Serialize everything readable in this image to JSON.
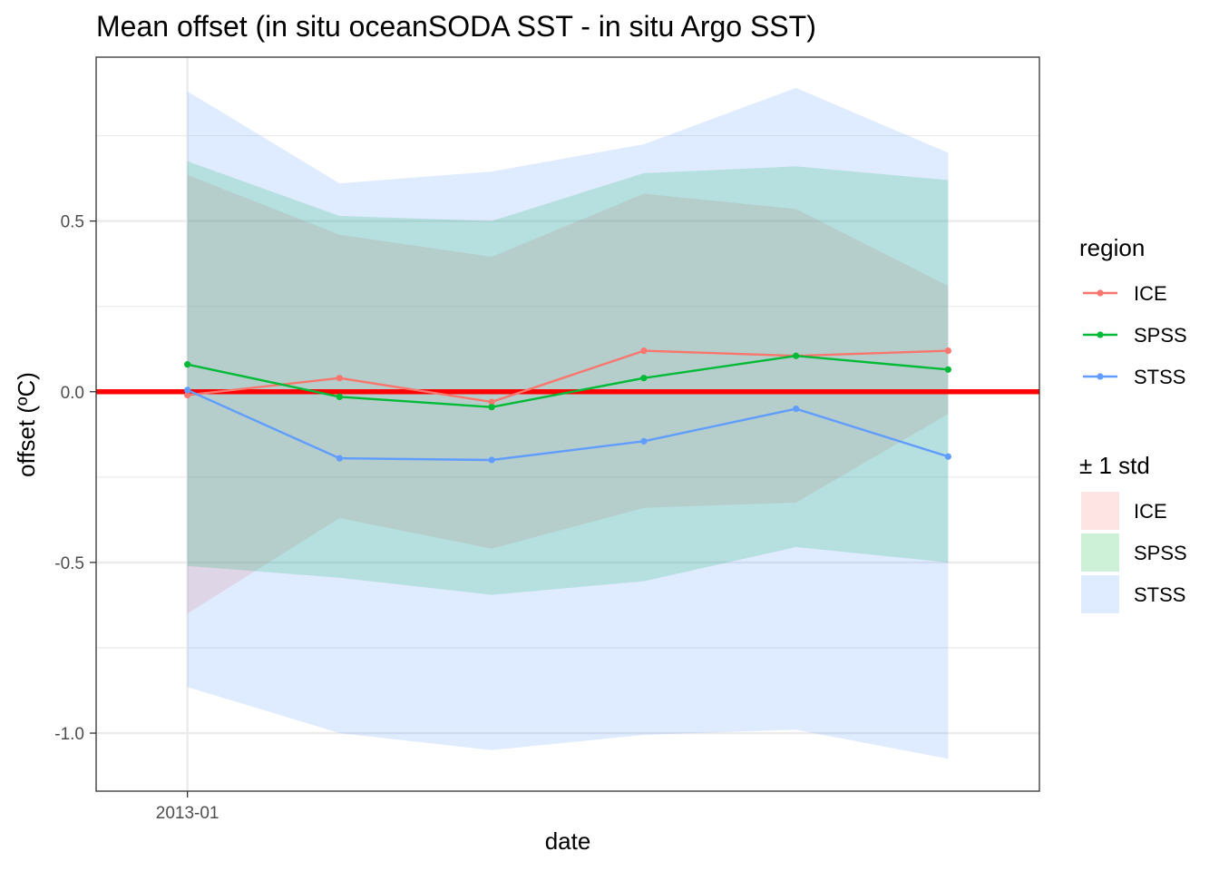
{
  "chart_data": {
    "type": "line",
    "title": "Mean offset (in situ oceanSODA SST - in situ Argo SST)",
    "xlabel": "date",
    "ylabel": "offset (ºC)",
    "x": [
      0,
      1,
      2,
      3,
      4,
      5
    ],
    "x_ticks": [
      {
        "x": 0,
        "label": "2013-01"
      }
    ],
    "y_ticks": [
      {
        "value": 0.5,
        "label": "0.5"
      },
      {
        "value": 0.0,
        "label": "0.0"
      },
      {
        "value": -0.5,
        "label": "-0.5"
      },
      {
        "value": -1.0,
        "label": "-1.0"
      }
    ],
    "ylim": [
      -1.17,
      0.98
    ],
    "xlim": [
      -0.6,
      5.6
    ],
    "reference_line": {
      "y": 0,
      "color": "#ff0000"
    },
    "grid": true,
    "series": [
      {
        "name": "ICE",
        "color": "#f8766d",
        "fill": "#f8766d",
        "mean": [
          -0.01,
          0.04,
          -0.03,
          0.12,
          0.105,
          0.12
        ],
        "upper": [
          0.635,
          0.46,
          0.395,
          0.58,
          0.535,
          0.31
        ],
        "lower": [
          -0.65,
          -0.37,
          -0.46,
          -0.34,
          -0.325,
          -0.065
        ]
      },
      {
        "name": "SPSS",
        "color": "#00ba38",
        "fill": "#00ba38",
        "mean": [
          0.08,
          -0.015,
          -0.045,
          0.04,
          0.105,
          0.065
        ],
        "upper": [
          0.675,
          0.515,
          0.5,
          0.64,
          0.66,
          0.62
        ],
        "lower": [
          -0.51,
          -0.545,
          -0.595,
          -0.555,
          -0.455,
          -0.5
        ]
      },
      {
        "name": "STSS",
        "color": "#619cff",
        "fill": "#619cff",
        "mean": [
          0.005,
          -0.195,
          -0.2,
          -0.145,
          -0.05,
          -0.19
        ],
        "upper": [
          0.88,
          0.61,
          0.645,
          0.725,
          0.89,
          0.7
        ],
        "lower": [
          -0.865,
          -1.0,
          -1.05,
          -1.005,
          -0.99,
          -1.075
        ]
      }
    ],
    "legend": {
      "placement": "right",
      "line_title": "region",
      "fill_title": "± 1 std",
      "items": [
        "ICE",
        "SPSS",
        "STSS"
      ]
    }
  }
}
